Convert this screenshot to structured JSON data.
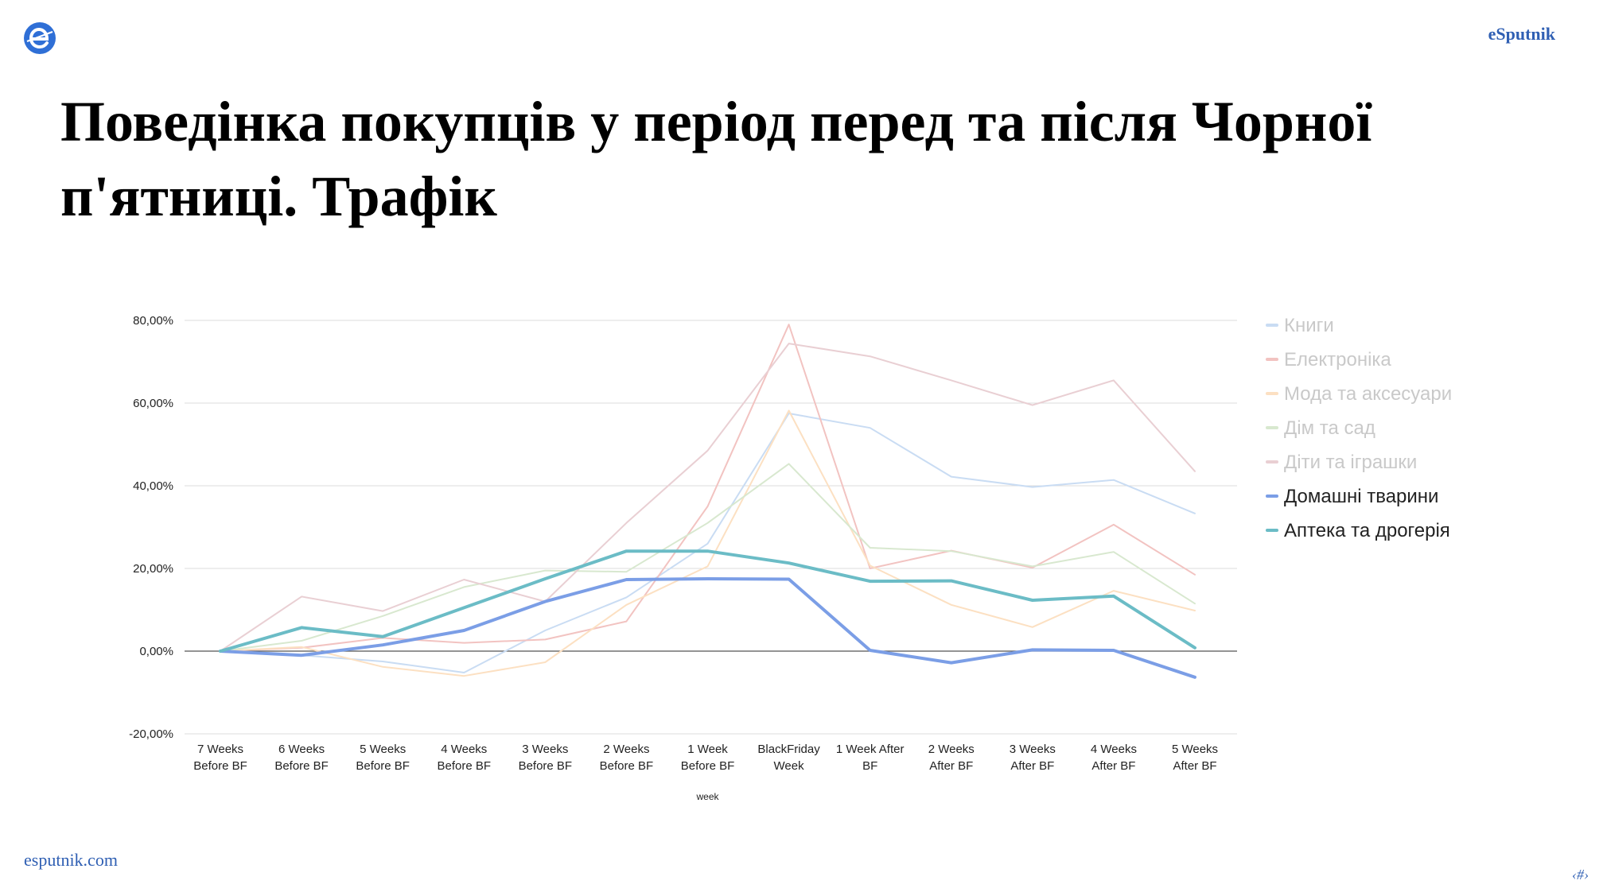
{
  "header": {
    "brand": "eSputnik",
    "logo_icon": "esputnik-logo-icon"
  },
  "slide": {
    "title": "Поведінка покупців у період перед та після Чорної п'ятниці. Трафік"
  },
  "footer": {
    "url": "esputnik.com",
    "page_number": "‹#›"
  },
  "chart_data": {
    "type": "line",
    "xlabel": "week",
    "ylabel": "",
    "ylim": [
      -20,
      80
    ],
    "y_ticks": [
      "80,00%",
      "60,00%",
      "40,00%",
      "20,00%",
      "0,00%",
      "-20,00%"
    ],
    "grid": true,
    "legend_position": "right",
    "categories": [
      [
        "7 Weeks",
        "Before BF"
      ],
      [
        "6 Weeks",
        "Before BF"
      ],
      [
        "5 Weeks",
        "Before BF"
      ],
      [
        "4 Weeks",
        "Before BF"
      ],
      [
        "3 Weeks",
        "Before BF"
      ],
      [
        "2 Weeks",
        "Before BF"
      ],
      [
        "1 Week",
        "Before BF"
      ],
      [
        "BlackFriday",
        "Week"
      ],
      [
        "1 Week After",
        "BF"
      ],
      [
        "2 Weeks",
        "After BF"
      ],
      [
        "3 Weeks",
        "After BF"
      ],
      [
        "4 Weeks",
        "After BF"
      ],
      [
        "5 Weeks",
        "After BF"
      ]
    ],
    "series": [
      {
        "name": "Книги",
        "color": "#c9dcf3",
        "highlight": false,
        "values": [
          0,
          -1,
          -2.5,
          -5.2,
          5,
          13,
          26,
          57.5,
          54,
          42.2,
          39.7,
          41.4,
          33.3
        ]
      },
      {
        "name": "Електроніка",
        "color": "#f2c3c1",
        "highlight": false,
        "values": [
          0,
          0.8,
          3.2,
          2,
          2.8,
          7.2,
          35,
          79,
          20,
          24.3,
          20.2,
          30.6,
          18.5
        ]
      },
      {
        "name": "Мода та аксесуари",
        "color": "#fce0c2",
        "highlight": false,
        "values": [
          0,
          1,
          -3.8,
          -6,
          -2.7,
          11.2,
          20.5,
          58.2,
          20.7,
          11.2,
          5.8,
          14.6,
          9.8
        ]
      },
      {
        "name": "Дім та сад",
        "color": "#d8e8cf",
        "highlight": false,
        "values": [
          0,
          2.5,
          8.5,
          15.5,
          19.5,
          19.2,
          31,
          45.3,
          25,
          24.2,
          20.5,
          24,
          11.5
        ]
      },
      {
        "name": "Діти та іграшки",
        "color": "#e9cfd3",
        "highlight": false,
        "values": [
          0,
          13.2,
          9.7,
          17.3,
          12,
          31,
          48.5,
          74.4,
          71.3,
          65.5,
          59.5,
          65.5,
          43.5
        ]
      },
      {
        "name": "Домашні тварини",
        "color": "#7b9ee6",
        "highlight": true,
        "values": [
          0,
          -1,
          1.5,
          5,
          12,
          17.3,
          17.5,
          17.4,
          0.2,
          -2.8,
          0.3,
          0.2,
          -6.3
        ]
      },
      {
        "name": "Аптека та дрогерія",
        "color": "#6bbcc6",
        "highlight": true,
        "values": [
          0,
          5.7,
          3.5,
          10.5,
          17.5,
          24.2,
          24.2,
          21.3,
          16.9,
          17,
          12.3,
          13.3,
          0.8
        ]
      }
    ]
  }
}
